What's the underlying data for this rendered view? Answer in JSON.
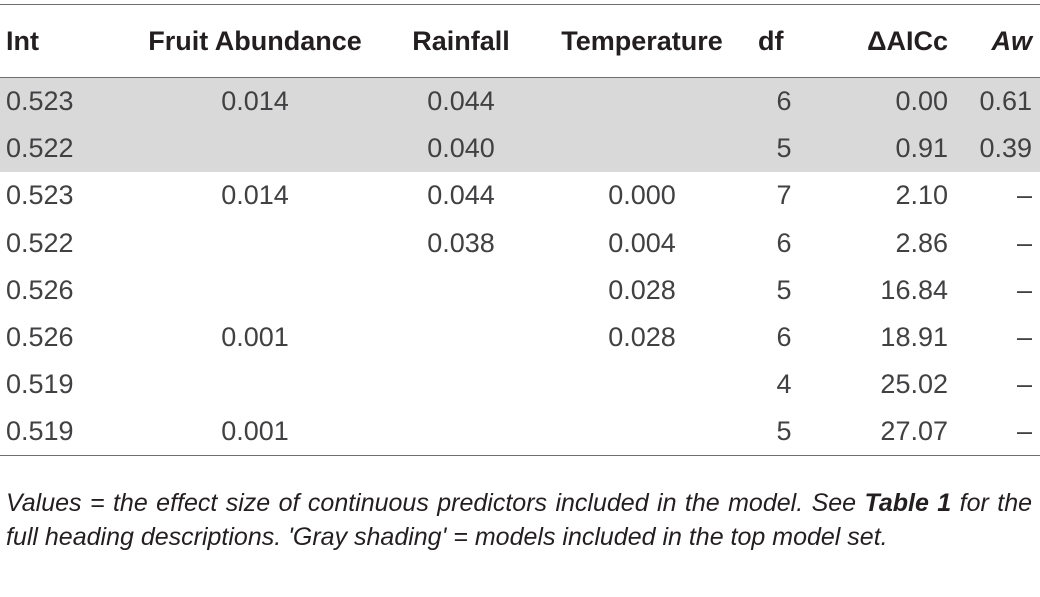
{
  "table": {
    "headers": {
      "int": "Int",
      "fruit": "Fruit Abundance",
      "rain": "Rainfall",
      "temp": "Temperature",
      "df": "df",
      "aicc": "ΔAICc",
      "aw": "Aw"
    },
    "rows": [
      {
        "int": "0.523",
        "fruit": "0.014",
        "rain": "0.044",
        "temp": "",
        "df": "6",
        "aicc": "0.00",
        "aw": "0.61",
        "shaded": true
      },
      {
        "int": "0.522",
        "fruit": "",
        "rain": "0.040",
        "temp": "",
        "df": "5",
        "aicc": "0.91",
        "aw": "0.39",
        "shaded": true
      },
      {
        "int": "0.523",
        "fruit": "0.014",
        "rain": "0.044",
        "temp": "0.000",
        "df": "7",
        "aicc": "2.10",
        "aw": "–",
        "shaded": false
      },
      {
        "int": "0.522",
        "fruit": "",
        "rain": "0.038",
        "temp": "0.004",
        "df": "6",
        "aicc": "2.86",
        "aw": "–",
        "shaded": false
      },
      {
        "int": "0.526",
        "fruit": "",
        "rain": "",
        "temp": "0.028",
        "df": "5",
        "aicc": "16.84",
        "aw": "–",
        "shaded": false
      },
      {
        "int": "0.526",
        "fruit": "0.001",
        "rain": "",
        "temp": "0.028",
        "df": "6",
        "aicc": "18.91",
        "aw": "–",
        "shaded": false
      },
      {
        "int": "0.519",
        "fruit": "",
        "rain": "",
        "temp": "",
        "df": "4",
        "aicc": "25.02",
        "aw": "–",
        "shaded": false
      },
      {
        "int": "0.519",
        "fruit": "0.001",
        "rain": "",
        "temp": "",
        "df": "5",
        "aicc": "27.07",
        "aw": "–",
        "shaded": false
      }
    ],
    "shade_color": "#d9d9d9"
  },
  "footnote": {
    "part1": "Values = the effect size of continuous predictors included in the model. See ",
    "table_ref": "Table 1",
    "part2": " for the full heading descriptions. 'Gray shading' = models included in the top model set."
  }
}
